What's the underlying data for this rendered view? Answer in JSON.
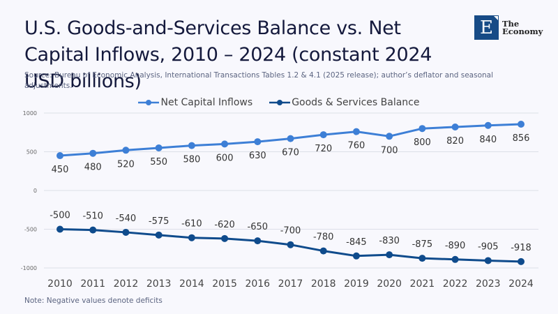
{
  "header": {
    "title": "U.S. Goods-and-Services Balance vs. Net Capital Inflows, 2010 – 2024 (constant 2024 USD billions)",
    "source": "Source:  Bureau of Economic Analysis, International Transactions Tables 1.2 & 4.1 (2025 release); author’s deflator and seasonal adjustments."
  },
  "logo": {
    "icon": "E",
    "line1": "The",
    "line2": "Economy",
    "color": "#174b86"
  },
  "footer": {
    "note": "Note: Negative values denote deficits"
  },
  "chart_data": {
    "type": "line",
    "title": "U.S. Goods-and-Services Balance vs. Net Capital Inflows, 2010 – 2024 (constant 2024 USD billions)",
    "xlabel": "",
    "ylabel": "",
    "x": [
      "2010",
      "2011",
      "2012",
      "2013",
      "2014",
      "2015",
      "2016",
      "2017",
      "2018",
      "2019",
      "2020",
      "2021",
      "2022",
      "2023",
      "2024"
    ],
    "ylim": [
      -1000,
      1000
    ],
    "yticks": [
      1000,
      500,
      0,
      -500,
      -1000
    ],
    "grid": true,
    "legend_position": "top-center",
    "series": [
      {
        "name": "Net Capital Inflows",
        "color": "#3d7fd6",
        "label_position": "below",
        "values": [
          450,
          480,
          520,
          550,
          580,
          600,
          630,
          670,
          720,
          760,
          700,
          800,
          820,
          840,
          856
        ]
      },
      {
        "name": "Goods & Services Balance",
        "color": "#0f4b8c",
        "label_position": "above",
        "values": [
          -500,
          -510,
          -540,
          -575,
          -610,
          -620,
          -650,
          -700,
          -780,
          -845,
          -830,
          -875,
          -890,
          -905,
          -918
        ]
      }
    ]
  }
}
